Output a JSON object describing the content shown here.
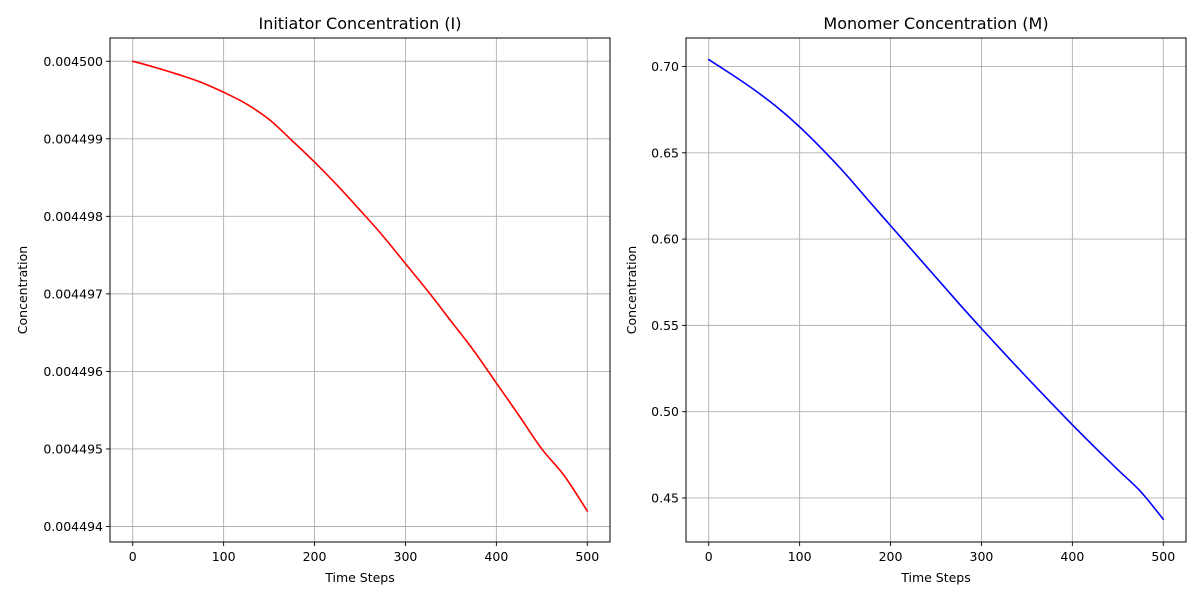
{
  "chart_data": [
    {
      "type": "line",
      "title": "Initiator Concentration (I)",
      "xlabel": "Time Steps",
      "ylabel": "Concentration",
      "xlim": [
        -25,
        525
      ],
      "ylim": [
        0.0044938,
        0.0045003
      ],
      "xticks": [
        0,
        100,
        200,
        300,
        400,
        500
      ],
      "xtick_labels": [
        "0",
        "100",
        "200",
        "300",
        "400",
        "500"
      ],
      "yticks": [
        0.004494,
        0.004495,
        0.004496,
        0.004497,
        0.004498,
        0.004499,
        0.0045
      ],
      "ytick_labels": [
        "0.004494",
        "0.004495",
        "0.004496",
        "0.004497",
        "0.004498",
        "0.004499",
        "0.004500"
      ],
      "grid": true,
      "series": [
        {
          "color": "#ff0000",
          "x": [
            0,
            25,
            50,
            75,
            100,
            125,
            150,
            175,
            200,
            225,
            250,
            275,
            300,
            325,
            350,
            375,
            400,
            425,
            450,
            475,
            500
          ],
          "y": [
            0.0045,
            0.00449992,
            0.00449983,
            0.00449973,
            0.0044996,
            0.00449945,
            0.00449925,
            0.00449898,
            0.0044987,
            0.0044984,
            0.00449808,
            0.00449775,
            0.00449739,
            0.00449703,
            0.00449665,
            0.00449627,
            0.00449585,
            0.00449543,
            0.004495,
            0.00449465,
            0.0044942
          ]
        }
      ]
    },
    {
      "type": "line",
      "title": "Monomer Concentration (M)",
      "xlabel": "Time Steps",
      "ylabel": "Concentration",
      "xlim": [
        -25,
        525
      ],
      "ylim": [
        0.4245,
        0.7165
      ],
      "xticks": [
        0,
        100,
        200,
        300,
        400,
        500
      ],
      "xtick_labels": [
        "0",
        "100",
        "200",
        "300",
        "400",
        "500"
      ],
      "yticks": [
        0.45,
        0.5,
        0.55,
        0.6,
        0.65,
        0.7
      ],
      "ytick_labels": [
        "0.45",
        "0.50",
        "0.55",
        "0.60",
        "0.65",
        "0.70"
      ],
      "grid": true,
      "series": [
        {
          "color": "#0000ff",
          "x": [
            0,
            25,
            50,
            75,
            100,
            125,
            150,
            175,
            200,
            225,
            250,
            275,
            300,
            325,
            350,
            375,
            400,
            425,
            450,
            475,
            500
          ],
          "y": [
            0.704,
            0.6955,
            0.6865,
            0.6765,
            0.665,
            0.652,
            0.638,
            0.6228,
            0.6078,
            0.5928,
            0.5778,
            0.5628,
            0.5482,
            0.5339,
            0.5198,
            0.506,
            0.4924,
            0.4792,
            0.4664,
            0.4538,
            0.4377
          ]
        }
      ]
    }
  ]
}
